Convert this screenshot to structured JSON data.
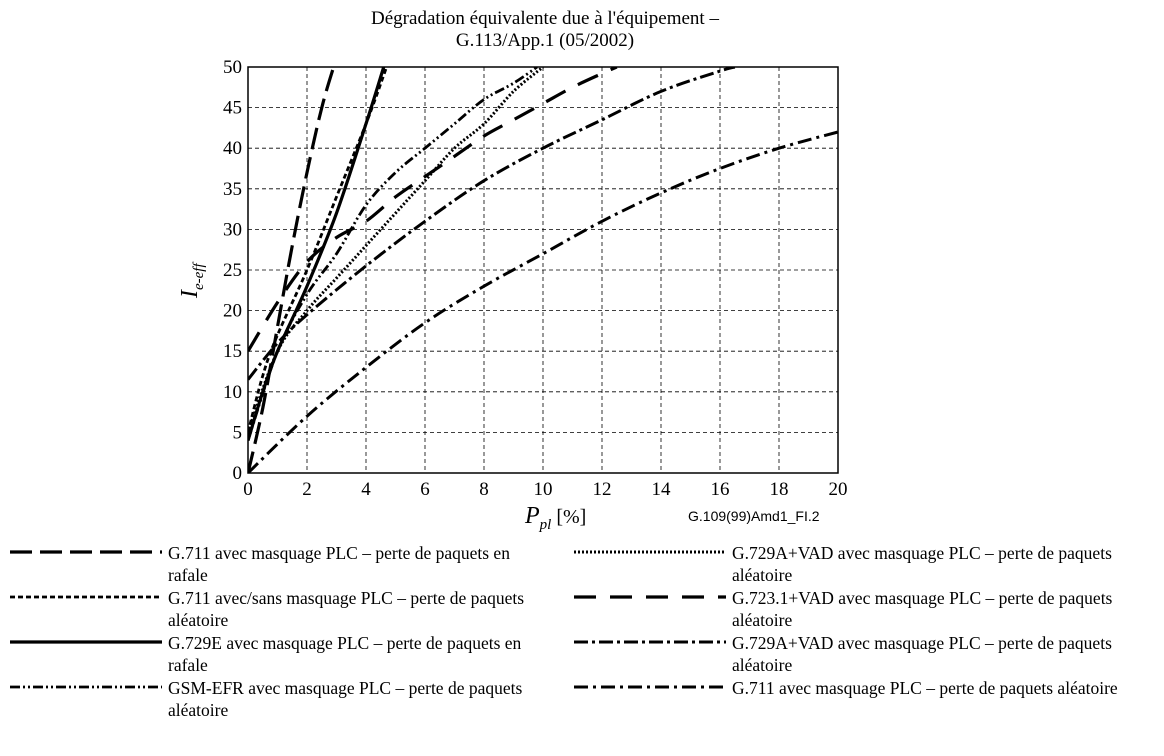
{
  "chart_data": {
    "type": "line",
    "title": "Dégradation équivalente due à l'équipement –",
    "subtitle": "G.113/App.1 (05/2002)",
    "xlabel_main": "P",
    "xlabel_sub": "pl",
    "xlabel_unit": " [%]",
    "ylabel_main": "I",
    "ylabel_sub": "e-eff",
    "xlim": [
      0,
      20
    ],
    "ylim": [
      0,
      50
    ],
    "xticks": [
      0,
      2,
      4,
      6,
      8,
      10,
      12,
      14,
      16,
      18,
      20
    ],
    "yticks": [
      0,
      5,
      10,
      15,
      20,
      25,
      30,
      35,
      40,
      45,
      50
    ],
    "grid": true,
    "figure_id": "G.109(99)Amd1_FI.2",
    "series": [
      {
        "name": "G.711 avec masquage PLC – perte de paquets en rafale",
        "dash": "22,8",
        "width": 3.2,
        "legend_col": 0,
        "x": [
          0,
          0.5,
          1,
          1.5,
          2,
          2.5,
          2.9
        ],
        "y": [
          0,
          8,
          18,
          28,
          37,
          45,
          50
        ]
      },
      {
        "name": "G.711 avec/sans masquage PLC – perte de paquets aléatoire",
        "dash": "5,3",
        "width": 2.8,
        "legend_col": 0,
        "x": [
          0,
          0.5,
          1,
          2,
          3,
          4,
          4.7
        ],
        "y": [
          5,
          12,
          17,
          25,
          34,
          43,
          50
        ]
      },
      {
        "name": "G.729E avec masquage PLC – perte de paquets en rafale",
        "dash": "",
        "width": 3.2,
        "legend_col": 0,
        "x": [
          0,
          0.5,
          1,
          2,
          3,
          4,
          4.6
        ],
        "y": [
          4,
          10,
          15,
          23,
          32,
          43,
          50
        ]
      },
      {
        "name": "GSM-EFR avec masquage PLC – perte de paquets aléatoire",
        "dash": "10,3,2,3,2,3",
        "width": 2.8,
        "legend_col": 0,
        "x": [
          0,
          1,
          2,
          3,
          4,
          5,
          6,
          7,
          8,
          9,
          9.8
        ],
        "y": [
          4,
          15,
          22,
          27,
          33,
          37,
          40,
          43,
          46,
          48,
          50
        ]
      },
      {
        "name": "G.729A+VAD avec masquage PLC – perte de paquets aléatoire",
        "dash": "2,2",
        "width": 3,
        "legend_col": 1,
        "x": [
          0,
          1,
          2,
          3,
          4,
          5,
          6,
          7,
          8,
          9,
          10
        ],
        "y": [
          5,
          15,
          20,
          24,
          28,
          32,
          36,
          40,
          43,
          47,
          50
        ]
      },
      {
        "name": "G.723.1+VAD avec masquage PLC – perte de paquets aléatoire",
        "dash": "22,14",
        "width": 3.2,
        "legend_col": 1,
        "x": [
          0,
          1,
          2,
          3,
          4,
          5,
          6,
          7,
          8,
          9,
          10,
          11,
          12,
          12.5
        ],
        "y": [
          15,
          21,
          26,
          29,
          31,
          34,
          36.5,
          39,
          41.5,
          43.5,
          45.5,
          47.5,
          49.2,
          50
        ]
      },
      {
        "name": "G.729A+VAD avec masquage PLC – perte de paquets aléatoire",
        "dash": "14,4,3,4",
        "width": 3,
        "legend_col": 1,
        "x": [
          0,
          1,
          2,
          4,
          6,
          8,
          10,
          12,
          14,
          16,
          16.5
        ],
        "y": [
          11.5,
          16,
          19.5,
          25.5,
          31,
          36,
          40,
          43.5,
          47,
          49.5,
          50
        ]
      },
      {
        "name": "G.711 avec masquage PLC – perte de paquets aléatoire",
        "dash": "14,5,3,5",
        "width": 3,
        "legend_col": 1,
        "x": [
          0,
          2,
          4,
          6,
          8,
          10,
          12,
          14,
          16,
          18,
          20
        ],
        "y": [
          0,
          7,
          13,
          18.5,
          23,
          27,
          31,
          34.5,
          37.5,
          40,
          42
        ]
      }
    ]
  }
}
